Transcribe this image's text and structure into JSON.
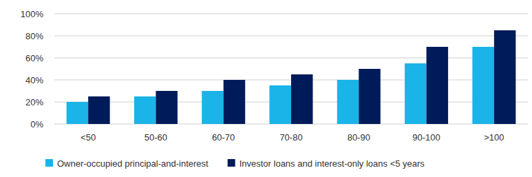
{
  "chart_data": {
    "type": "bar",
    "categories": [
      "<50",
      "50-60",
      "60-70",
      "70-80",
      "80-90",
      "90-100",
      ">100"
    ],
    "series": [
      {
        "name": "Owner-occupied principal-and-interest",
        "color": "#1ab4e8",
        "values": [
          20,
          25,
          30,
          35,
          40,
          55,
          70
        ]
      },
      {
        "name": "Investor loans and interest-only loans <5 years",
        "color": "#001b5a",
        "values": [
          25,
          30,
          40,
          45,
          50,
          70,
          85
        ]
      }
    ],
    "ylim": [
      0,
      100
    ],
    "yticks": [
      {
        "value": 0,
        "label": "0%"
      },
      {
        "value": 20,
        "label": "20%"
      },
      {
        "value": 40,
        "label": "40%"
      },
      {
        "value": 60,
        "label": "60%"
      },
      {
        "value": 80,
        "label": "80%"
      },
      {
        "value": 100,
        "label": "100%"
      }
    ],
    "grid": true,
    "legend": "bottom"
  }
}
